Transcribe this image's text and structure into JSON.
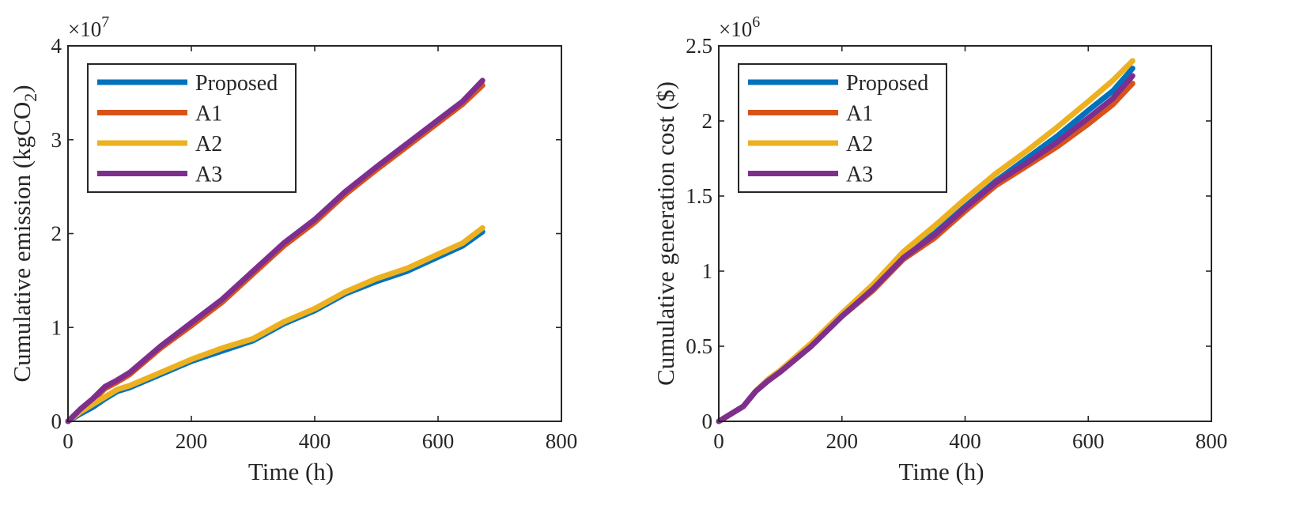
{
  "chart_data": [
    {
      "type": "line",
      "id": "emission",
      "title": "",
      "xlabel": "Time (h)",
      "ylabel_main": "Cumulative emission (kgCO",
      "ylabel_sub": "2",
      "ylabel_close": ")",
      "y_multiplier_base": "×10",
      "y_multiplier_exp": "7",
      "xlim": [
        0,
        800
      ],
      "ylim": [
        0,
        4
      ],
      "xticks": [
        0,
        200,
        400,
        600,
        800
      ],
      "xtick_labels": [
        "0",
        "200",
        "400",
        "600",
        "800"
      ],
      "yticks": [
        0,
        1,
        2,
        3,
        4
      ],
      "ytick_labels": [
        "0",
        "1",
        "2",
        "3",
        "4"
      ],
      "legend_position": "top-left",
      "x": [
        0,
        20,
        40,
        60,
        80,
        100,
        150,
        200,
        250,
        300,
        350,
        400,
        450,
        500,
        550,
        600,
        640,
        672
      ],
      "series": [
        {
          "name": "Proposed",
          "color": "#0072BD",
          "values": [
            0,
            0.08,
            0.15,
            0.24,
            0.32,
            0.36,
            0.5,
            0.64,
            0.75,
            0.86,
            1.04,
            1.18,
            1.36,
            1.49,
            1.6,
            1.75,
            1.87,
            2.02
          ]
        },
        {
          "name": "A1",
          "color": "#D95319",
          "values": [
            0,
            0.12,
            0.22,
            0.35,
            0.42,
            0.5,
            0.78,
            1.02,
            1.27,
            1.57,
            1.87,
            2.12,
            2.42,
            2.68,
            2.93,
            3.18,
            3.38,
            3.58
          ]
        },
        {
          "name": "A2",
          "color": "#EDB120",
          "values": [
            0,
            0.1,
            0.18,
            0.26,
            0.34,
            0.38,
            0.52,
            0.66,
            0.78,
            0.88,
            1.06,
            1.2,
            1.38,
            1.52,
            1.63,
            1.78,
            1.9,
            2.06
          ]
        },
        {
          "name": "A3",
          "color": "#7E2F8E",
          "values": [
            0,
            0.13,
            0.24,
            0.37,
            0.44,
            0.52,
            0.8,
            1.05,
            1.3,
            1.6,
            1.9,
            2.15,
            2.45,
            2.71,
            2.96,
            3.21,
            3.41,
            3.63
          ]
        }
      ]
    },
    {
      "type": "line",
      "id": "cost",
      "title": "",
      "xlabel": "Time (h)",
      "ylabel_main": "Cumulative generation cost ($)",
      "ylabel_sub": "",
      "ylabel_close": "",
      "y_multiplier_base": "×10",
      "y_multiplier_exp": "6",
      "xlim": [
        0,
        800
      ],
      "ylim": [
        0,
        2.5
      ],
      "xticks": [
        0,
        200,
        400,
        600,
        800
      ],
      "xtick_labels": [
        "0",
        "200",
        "400",
        "600",
        "800"
      ],
      "yticks": [
        0,
        0.5,
        1,
        1.5,
        2,
        2.5
      ],
      "ytick_labels": [
        "0",
        "0.5",
        "1",
        "1.5",
        "2",
        "2.5"
      ],
      "legend_position": "top-left",
      "x": [
        0,
        20,
        40,
        60,
        80,
        100,
        150,
        200,
        250,
        300,
        350,
        400,
        450,
        500,
        550,
        600,
        640,
        672
      ],
      "series": [
        {
          "name": "Proposed",
          "color": "#0072BD",
          "values": [
            0,
            0.05,
            0.1,
            0.2,
            0.27,
            0.33,
            0.5,
            0.7,
            0.88,
            1.1,
            1.25,
            1.43,
            1.6,
            1.75,
            1.9,
            2.07,
            2.2,
            2.35
          ]
        },
        {
          "name": "A1",
          "color": "#D95319",
          "values": [
            0,
            0.05,
            0.1,
            0.2,
            0.27,
            0.33,
            0.5,
            0.7,
            0.87,
            1.08,
            1.22,
            1.4,
            1.57,
            1.7,
            1.83,
            1.98,
            2.11,
            2.25
          ]
        },
        {
          "name": "A2",
          "color": "#EDB120",
          "values": [
            0,
            0.05,
            0.1,
            0.2,
            0.28,
            0.34,
            0.52,
            0.72,
            0.91,
            1.13,
            1.3,
            1.48,
            1.65,
            1.8,
            1.96,
            2.13,
            2.27,
            2.4
          ]
        },
        {
          "name": "A3",
          "color": "#7E2F8E",
          "values": [
            0,
            0.05,
            0.1,
            0.2,
            0.27,
            0.33,
            0.5,
            0.7,
            0.88,
            1.09,
            1.24,
            1.42,
            1.59,
            1.72,
            1.86,
            2.02,
            2.15,
            2.3
          ]
        }
      ]
    }
  ]
}
